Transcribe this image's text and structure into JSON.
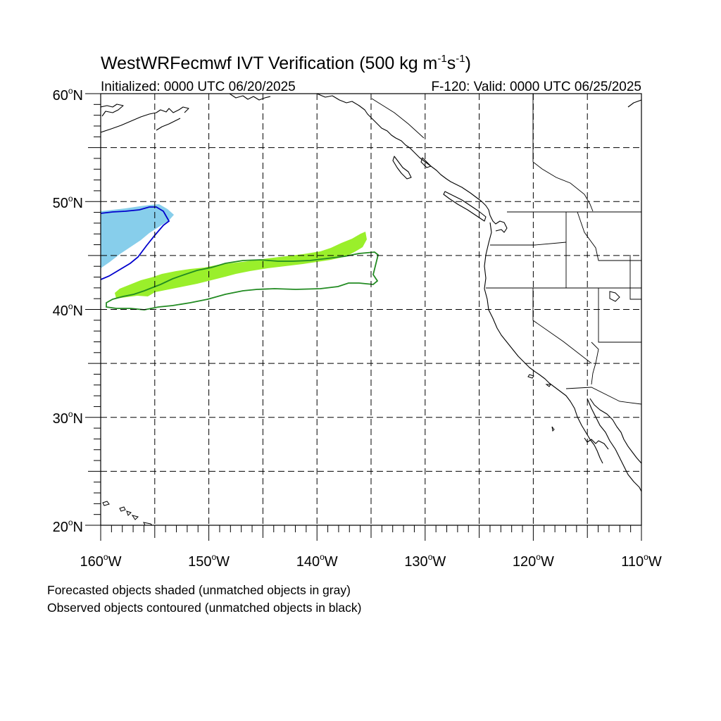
{
  "title": {
    "main": "WestWRFecmwf IVT Verification (500 kg m",
    "sup1": "-1",
    "mid": "s",
    "sup2": "-1",
    "end": ")"
  },
  "subtitle": {
    "initialized": "Initialized: 0000 UTC 06/20/2025",
    "valid": "F-120: Valid: 0000 UTC 06/25/2025"
  },
  "map": {
    "projection": "cylindrical equidistant",
    "lon_range": [
      -160,
      -110
    ],
    "lat_range": [
      20,
      60
    ],
    "gridlines": "dashed every 5 degrees",
    "lon_labels": [
      "160",
      "150",
      "140",
      "130",
      "120",
      "110"
    ],
    "lon_suffix": "W",
    "lat_labels": [
      "60",
      "50",
      "40",
      "30",
      "20"
    ],
    "lat_suffix": "N",
    "degree_symbol": "o"
  },
  "objects": {
    "forecast_shaded": [
      {
        "id": "forecast-object-1",
        "color": "#87ceeb",
        "lon_range": [
          -160,
          -153.5
        ],
        "lat_range": [
          44,
          49.5
        ]
      },
      {
        "id": "forecast-object-2",
        "color": "#9aef2b",
        "lon_range": [
          -158.5,
          -135.5
        ],
        "lat_range": [
          41,
          47
        ]
      }
    ],
    "observed_contoured": [
      {
        "id": "observed-object-1",
        "color": "#0000cd",
        "lon_range": [
          -160,
          -153.5
        ],
        "lat_range": [
          42.8,
          49.5
        ]
      },
      {
        "id": "observed-object-2",
        "color": "#228b22",
        "lon_range": [
          -160,
          -134.5
        ],
        "lat_range": [
          40,
          45.2
        ]
      }
    ]
  },
  "notes": {
    "line1": "Forecasted objects shaded (unmatched objects in gray)",
    "line2": "Observed objects contoured (unmatched objects in black)"
  }
}
